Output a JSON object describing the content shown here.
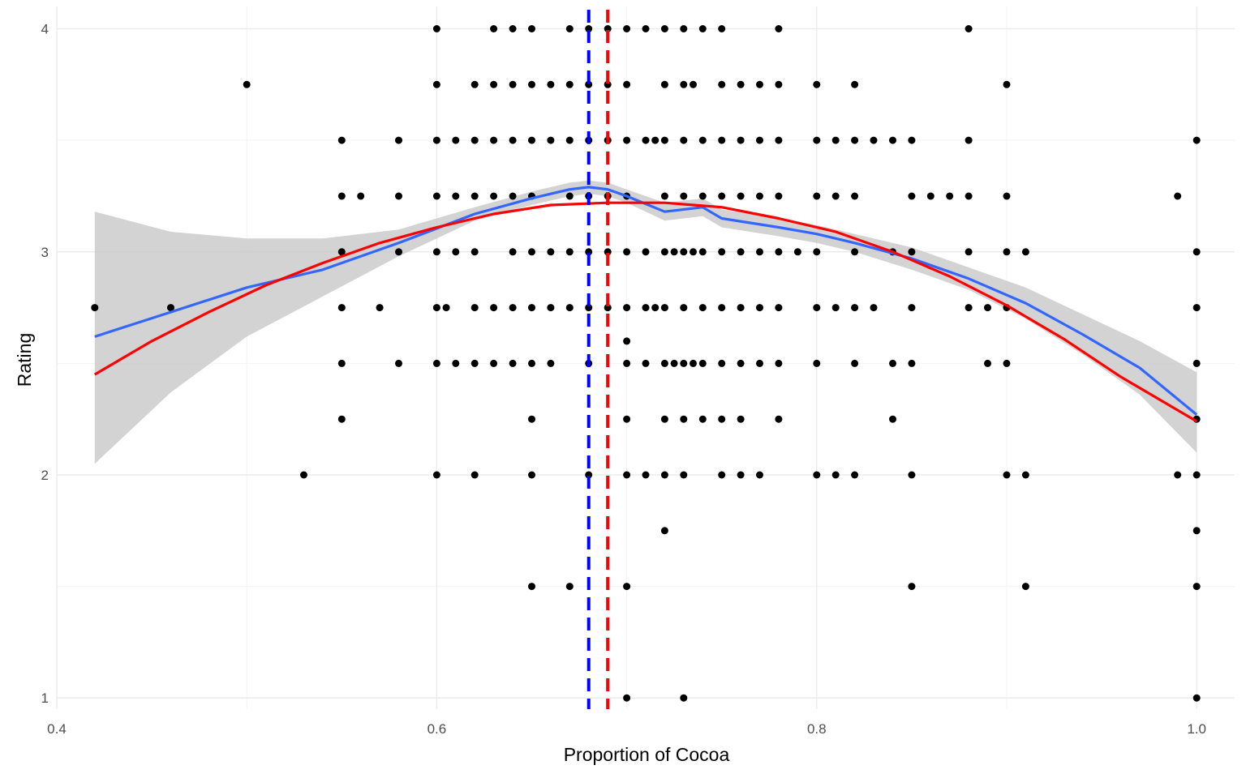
{
  "chart_data": {
    "type": "scatter",
    "title": "",
    "xlabel": "Proportion of Cocoa",
    "ylabel": "Rating",
    "xlim": [
      0.4,
      1.02
    ],
    "ylim": [
      0.95,
      4.1
    ],
    "x_ticks": [
      "0.4",
      "0.6",
      "0.8",
      "1.0"
    ],
    "y_ticks": [
      "1",
      "2",
      "3",
      "4"
    ],
    "grid": true,
    "legend": "none",
    "points": [
      [
        0.42,
        2.75
      ],
      [
        0.46,
        2.75
      ],
      [
        0.5,
        3.75
      ],
      [
        0.53,
        2.0
      ],
      [
        0.55,
        3.5
      ],
      [
        0.55,
        3.25
      ],
      [
        0.55,
        3.0
      ],
      [
        0.55,
        2.75
      ],
      [
        0.55,
        2.5
      ],
      [
        0.55,
        2.25
      ],
      [
        0.56,
        3.25
      ],
      [
        0.57,
        2.75
      ],
      [
        0.58,
        3.5
      ],
      [
        0.58,
        3.25
      ],
      [
        0.58,
        3.0
      ],
      [
        0.58,
        2.5
      ],
      [
        0.6,
        4.0
      ],
      [
        0.6,
        3.75
      ],
      [
        0.6,
        3.5
      ],
      [
        0.6,
        3.25
      ],
      [
        0.6,
        3.0
      ],
      [
        0.6,
        2.75
      ],
      [
        0.6,
        2.5
      ],
      [
        0.6,
        2.0
      ],
      [
        0.605,
        2.75
      ],
      [
        0.61,
        3.5
      ],
      [
        0.61,
        3.25
      ],
      [
        0.61,
        3.0
      ],
      [
        0.61,
        2.5
      ],
      [
        0.62,
        3.75
      ],
      [
        0.62,
        3.5
      ],
      [
        0.62,
        3.25
      ],
      [
        0.62,
        3.0
      ],
      [
        0.62,
        2.75
      ],
      [
        0.62,
        2.5
      ],
      [
        0.62,
        2.0
      ],
      [
        0.63,
        4.0
      ],
      [
        0.63,
        3.75
      ],
      [
        0.63,
        3.5
      ],
      [
        0.63,
        3.25
      ],
      [
        0.63,
        2.75
      ],
      [
        0.63,
        2.5
      ],
      [
        0.64,
        4.0
      ],
      [
        0.64,
        3.75
      ],
      [
        0.64,
        3.5
      ],
      [
        0.64,
        3.25
      ],
      [
        0.64,
        3.0
      ],
      [
        0.64,
        2.75
      ],
      [
        0.64,
        2.5
      ],
      [
        0.65,
        4.0
      ],
      [
        0.65,
        3.75
      ],
      [
        0.65,
        3.5
      ],
      [
        0.65,
        3.25
      ],
      [
        0.65,
        3.0
      ],
      [
        0.65,
        2.75
      ],
      [
        0.65,
        2.5
      ],
      [
        0.65,
        2.25
      ],
      [
        0.65,
        2.0
      ],
      [
        0.65,
        1.5
      ],
      [
        0.66,
        3.75
      ],
      [
        0.66,
        3.5
      ],
      [
        0.66,
        3.0
      ],
      [
        0.66,
        2.75
      ],
      [
        0.66,
        2.5
      ],
      [
        0.67,
        4.0
      ],
      [
        0.67,
        3.75
      ],
      [
        0.67,
        3.5
      ],
      [
        0.67,
        3.25
      ],
      [
        0.67,
        3.0
      ],
      [
        0.67,
        2.75
      ],
      [
        0.67,
        1.5
      ],
      [
        0.68,
        4.0
      ],
      [
        0.68,
        3.75
      ],
      [
        0.68,
        3.5
      ],
      [
        0.68,
        3.25
      ],
      [
        0.68,
        3.0
      ],
      [
        0.68,
        2.75
      ],
      [
        0.68,
        2.5
      ],
      [
        0.68,
        2.0
      ],
      [
        0.69,
        4.0
      ],
      [
        0.69,
        3.75
      ],
      [
        0.69,
        3.5
      ],
      [
        0.69,
        3.25
      ],
      [
        0.69,
        3.0
      ],
      [
        0.69,
        2.75
      ],
      [
        0.7,
        4.0
      ],
      [
        0.7,
        3.75
      ],
      [
        0.7,
        3.5
      ],
      [
        0.7,
        3.25
      ],
      [
        0.7,
        3.0
      ],
      [
        0.7,
        2.75
      ],
      [
        0.7,
        2.6
      ],
      [
        0.7,
        2.5
      ],
      [
        0.7,
        2.25
      ],
      [
        0.7,
        2.0
      ],
      [
        0.7,
        1.5
      ],
      [
        0.7,
        1.0
      ],
      [
        0.71,
        4.0
      ],
      [
        0.71,
        3.5
      ],
      [
        0.71,
        3.0
      ],
      [
        0.71,
        2.75
      ],
      [
        0.71,
        2.5
      ],
      [
        0.71,
        2.0
      ],
      [
        0.715,
        3.5
      ],
      [
        0.715,
        2.75
      ],
      [
        0.72,
        4.0
      ],
      [
        0.72,
        3.75
      ],
      [
        0.72,
        3.5
      ],
      [
        0.72,
        3.25
      ],
      [
        0.72,
        3.0
      ],
      [
        0.72,
        2.75
      ],
      [
        0.72,
        2.5
      ],
      [
        0.72,
        2.25
      ],
      [
        0.72,
        2.0
      ],
      [
        0.72,
        1.75
      ],
      [
        0.725,
        3.0
      ],
      [
        0.725,
        2.5
      ],
      [
        0.73,
        4.0
      ],
      [
        0.73,
        3.75
      ],
      [
        0.73,
        3.5
      ],
      [
        0.73,
        3.25
      ],
      [
        0.73,
        3.0
      ],
      [
        0.73,
        2.75
      ],
      [
        0.73,
        2.5
      ],
      [
        0.73,
        2.25
      ],
      [
        0.73,
        2.0
      ],
      [
        0.73,
        1.0
      ],
      [
        0.735,
        3.75
      ],
      [
        0.735,
        3.0
      ],
      [
        0.735,
        2.5
      ],
      [
        0.74,
        4.0
      ],
      [
        0.74,
        3.5
      ],
      [
        0.74,
        3.25
      ],
      [
        0.74,
        3.0
      ],
      [
        0.74,
        2.75
      ],
      [
        0.74,
        2.5
      ],
      [
        0.74,
        2.25
      ],
      [
        0.75,
        4.0
      ],
      [
        0.75,
        3.75
      ],
      [
        0.75,
        3.5
      ],
      [
        0.75,
        3.25
      ],
      [
        0.75,
        3.0
      ],
      [
        0.75,
        2.75
      ],
      [
        0.75,
        2.5
      ],
      [
        0.75,
        2.25
      ],
      [
        0.75,
        2.0
      ],
      [
        0.76,
        3.75
      ],
      [
        0.76,
        3.5
      ],
      [
        0.76,
        3.25
      ],
      [
        0.76,
        3.0
      ],
      [
        0.76,
        2.75
      ],
      [
        0.76,
        2.5
      ],
      [
        0.76,
        2.25
      ],
      [
        0.76,
        2.0
      ],
      [
        0.77,
        3.75
      ],
      [
        0.77,
        3.5
      ],
      [
        0.77,
        3.25
      ],
      [
        0.77,
        3.0
      ],
      [
        0.77,
        2.75
      ],
      [
        0.77,
        2.5
      ],
      [
        0.77,
        2.0
      ],
      [
        0.78,
        4.0
      ],
      [
        0.78,
        3.75
      ],
      [
        0.78,
        3.5
      ],
      [
        0.78,
        3.25
      ],
      [
        0.78,
        3.0
      ],
      [
        0.78,
        2.75
      ],
      [
        0.78,
        2.5
      ],
      [
        0.78,
        2.25
      ],
      [
        0.79,
        3.0
      ],
      [
        0.8,
        3.75
      ],
      [
        0.8,
        3.5
      ],
      [
        0.8,
        3.25
      ],
      [
        0.8,
        3.0
      ],
      [
        0.8,
        2.75
      ],
      [
        0.8,
        2.5
      ],
      [
        0.8,
        2.0
      ],
      [
        0.81,
        3.5
      ],
      [
        0.81,
        3.25
      ],
      [
        0.81,
        2.75
      ],
      [
        0.81,
        2.0
      ],
      [
        0.82,
        3.75
      ],
      [
        0.82,
        3.5
      ],
      [
        0.82,
        3.25
      ],
      [
        0.82,
        3.0
      ],
      [
        0.82,
        2.75
      ],
      [
        0.82,
        2.5
      ],
      [
        0.82,
        2.0
      ],
      [
        0.83,
        3.5
      ],
      [
        0.83,
        2.75
      ],
      [
        0.84,
        3.5
      ],
      [
        0.84,
        3.0
      ],
      [
        0.84,
        2.5
      ],
      [
        0.84,
        2.25
      ],
      [
        0.85,
        3.5
      ],
      [
        0.85,
        3.25
      ],
      [
        0.85,
        3.0
      ],
      [
        0.85,
        2.75
      ],
      [
        0.85,
        2.5
      ],
      [
        0.85,
        2.0
      ],
      [
        0.85,
        1.5
      ],
      [
        0.86,
        3.25
      ],
      [
        0.87,
        3.25
      ],
      [
        0.88,
        4.0
      ],
      [
        0.88,
        3.5
      ],
      [
        0.88,
        3.25
      ],
      [
        0.88,
        3.0
      ],
      [
        0.88,
        2.75
      ],
      [
        0.89,
        2.75
      ],
      [
        0.89,
        2.5
      ],
      [
        0.9,
        3.75
      ],
      [
        0.9,
        3.25
      ],
      [
        0.9,
        3.0
      ],
      [
        0.9,
        2.75
      ],
      [
        0.9,
        2.5
      ],
      [
        0.9,
        2.0
      ],
      [
        0.91,
        3.0
      ],
      [
        0.91,
        2.0
      ],
      [
        0.91,
        1.5
      ],
      [
        0.99,
        3.25
      ],
      [
        0.99,
        2.0
      ],
      [
        1.0,
        3.5
      ],
      [
        1.0,
        3.0
      ],
      [
        1.0,
        2.75
      ],
      [
        1.0,
        2.5
      ],
      [
        1.0,
        2.25
      ],
      [
        1.0,
        2.0
      ],
      [
        1.0,
        1.75
      ],
      [
        1.0,
        1.5
      ],
      [
        1.0,
        1.0
      ]
    ],
    "loess_fit": {
      "color": "#3366ff",
      "x": [
        0.42,
        0.46,
        0.5,
        0.54,
        0.58,
        0.62,
        0.65,
        0.67,
        0.68,
        0.69,
        0.7,
        0.72,
        0.74,
        0.75,
        0.78,
        0.8,
        0.82,
        0.85,
        0.88,
        0.91,
        0.94,
        0.97,
        1.0
      ],
      "y": [
        2.62,
        2.73,
        2.84,
        2.92,
        3.04,
        3.17,
        3.24,
        3.28,
        3.29,
        3.28,
        3.25,
        3.18,
        3.2,
        3.15,
        3.11,
        3.08,
        3.04,
        2.97,
        2.88,
        2.77,
        2.63,
        2.48,
        2.27
      ],
      "ci_upper": [
        3.18,
        3.09,
        3.06,
        3.06,
        3.1,
        3.2,
        3.27,
        3.31,
        3.32,
        3.31,
        3.28,
        3.22,
        3.24,
        3.19,
        3.15,
        3.12,
        3.08,
        3.02,
        2.93,
        2.84,
        2.72,
        2.6,
        2.46
      ],
      "ci_lower": [
        2.05,
        2.37,
        2.62,
        2.8,
        2.98,
        3.14,
        3.21,
        3.25,
        3.26,
        3.25,
        3.22,
        3.14,
        3.16,
        3.11,
        3.07,
        3.04,
        3.0,
        2.92,
        2.83,
        2.7,
        2.54,
        2.36,
        2.1
      ]
    },
    "quadratic_fit": {
      "color": "#ff0000",
      "x": [
        0.42,
        0.45,
        0.48,
        0.51,
        0.54,
        0.57,
        0.6,
        0.63,
        0.66,
        0.69,
        0.72,
        0.75,
        0.78,
        0.81,
        0.84,
        0.87,
        0.9,
        0.93,
        0.96,
        1.0
      ],
      "y": [
        2.45,
        2.6,
        2.73,
        2.85,
        2.95,
        3.04,
        3.11,
        3.17,
        3.21,
        3.22,
        3.22,
        3.2,
        3.15,
        3.09,
        3.0,
        2.89,
        2.76,
        2.61,
        2.44,
        2.24
      ]
    },
    "vlines": [
      {
        "x": 0.68,
        "color": "#0000ff",
        "style": "dashed"
      },
      {
        "x": 0.69,
        "color": "#ff0000",
        "style": "dashed"
      }
    ],
    "colors": {
      "points": "#000000",
      "ci_band": "#c8c8c8",
      "grid": "#ebebeb"
    }
  }
}
